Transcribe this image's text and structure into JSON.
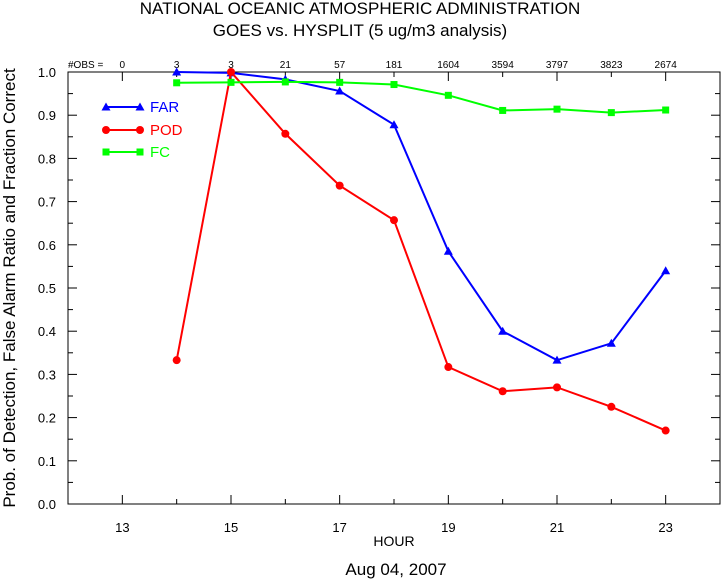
{
  "header": {
    "title": "NATIONAL OCEANIC ATMOSPHERIC ADMINISTRATION",
    "subtitle": "GOES vs. HYSPLIT  (5 ug/m3 analysis)"
  },
  "footer": {
    "date": "Aug 04, 2007"
  },
  "chart_data": {
    "type": "line",
    "title": "NATIONAL OCEANIC ATMOSPHERIC ADMINISTRATION",
    "subtitle": "GOES vs. HYSPLIT  (5 ug/m3 analysis)",
    "xlabel": "HOUR",
    "ylabel": "Prob. of Detection, False Alarm Ratio and Fraction Correct",
    "xlim": [
      12,
      24
    ],
    "ylim": [
      0,
      1.0
    ],
    "x_ticks": [
      13,
      15,
      17,
      19,
      21,
      23
    ],
    "y_ticks": [
      0.0,
      0.1,
      0.2,
      0.3,
      0.4,
      0.5,
      0.6,
      0.7,
      0.8,
      0.9,
      1.0
    ],
    "y_tick_labels": [
      "0.0",
      "0.1",
      "0.2",
      "0.3",
      "0.4",
      "0.5",
      "0.6",
      "0.7",
      "0.8",
      "0.9",
      "1.0"
    ],
    "grid": false,
    "legend_position": "top-left",
    "obs_label": "#OBS =",
    "obs": [
      {
        "x": 13,
        "label": "0"
      },
      {
        "x": 14,
        "label": "3"
      },
      {
        "x": 15,
        "label": "3"
      },
      {
        "x": 16,
        "label": "21"
      },
      {
        "x": 17,
        "label": "57"
      },
      {
        "x": 18,
        "label": "181"
      },
      {
        "x": 19,
        "label": "1604"
      },
      {
        "x": 20,
        "label": "3594"
      },
      {
        "x": 21,
        "label": "3797"
      },
      {
        "x": 22,
        "label": "3823"
      },
      {
        "x": 23,
        "label": "2674"
      }
    ],
    "series": [
      {
        "name": "FAR",
        "color": "#0000ff",
        "marker": "triangle",
        "x": [
          14,
          15,
          16,
          17,
          18,
          19,
          20,
          21,
          22,
          23
        ],
        "y": [
          1.0,
          0.998,
          0.983,
          0.956,
          0.878,
          0.585,
          0.4,
          0.333,
          0.372,
          0.54
        ]
      },
      {
        "name": "POD",
        "color": "#ff0000",
        "marker": "circle",
        "x": [
          14,
          15,
          16,
          17,
          18,
          19,
          20,
          21,
          22,
          23
        ],
        "y": [
          0.333,
          1.0,
          0.857,
          0.737,
          0.657,
          0.317,
          0.261,
          0.27,
          0.225,
          0.17
        ]
      },
      {
        "name": "FC",
        "color": "#00ff00",
        "marker": "square",
        "x": [
          14,
          15,
          16,
          17,
          18,
          19,
          20,
          21,
          22,
          23
        ],
        "y": [
          0.975,
          0.976,
          0.977,
          0.976,
          0.971,
          0.946,
          0.911,
          0.914,
          0.906,
          0.912
        ]
      }
    ]
  }
}
